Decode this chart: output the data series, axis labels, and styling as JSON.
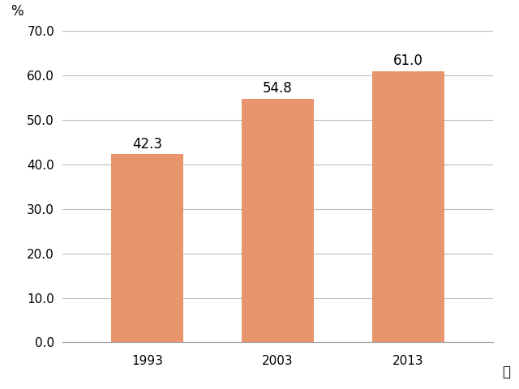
{
  "categories": [
    "1993",
    "2003",
    "2013"
  ],
  "values": [
    42.3,
    54.8,
    61.0
  ],
  "bar_color": "#E8956D",
  "xlabel_suffix": "年",
  "ylabel_prefix": "%",
  "ylim": [
    0,
    70
  ],
  "yticks": [
    0.0,
    10.0,
    20.0,
    30.0,
    40.0,
    50.0,
    60.0,
    70.0
  ],
  "background_color": "#ffffff",
  "bar_width": 0.55,
  "label_fontsize": 12,
  "tick_fontsize": 11,
  "annotation_fontsize": 12,
  "grid_color": "#BBBBBB",
  "grid_linewidth": 0.8
}
